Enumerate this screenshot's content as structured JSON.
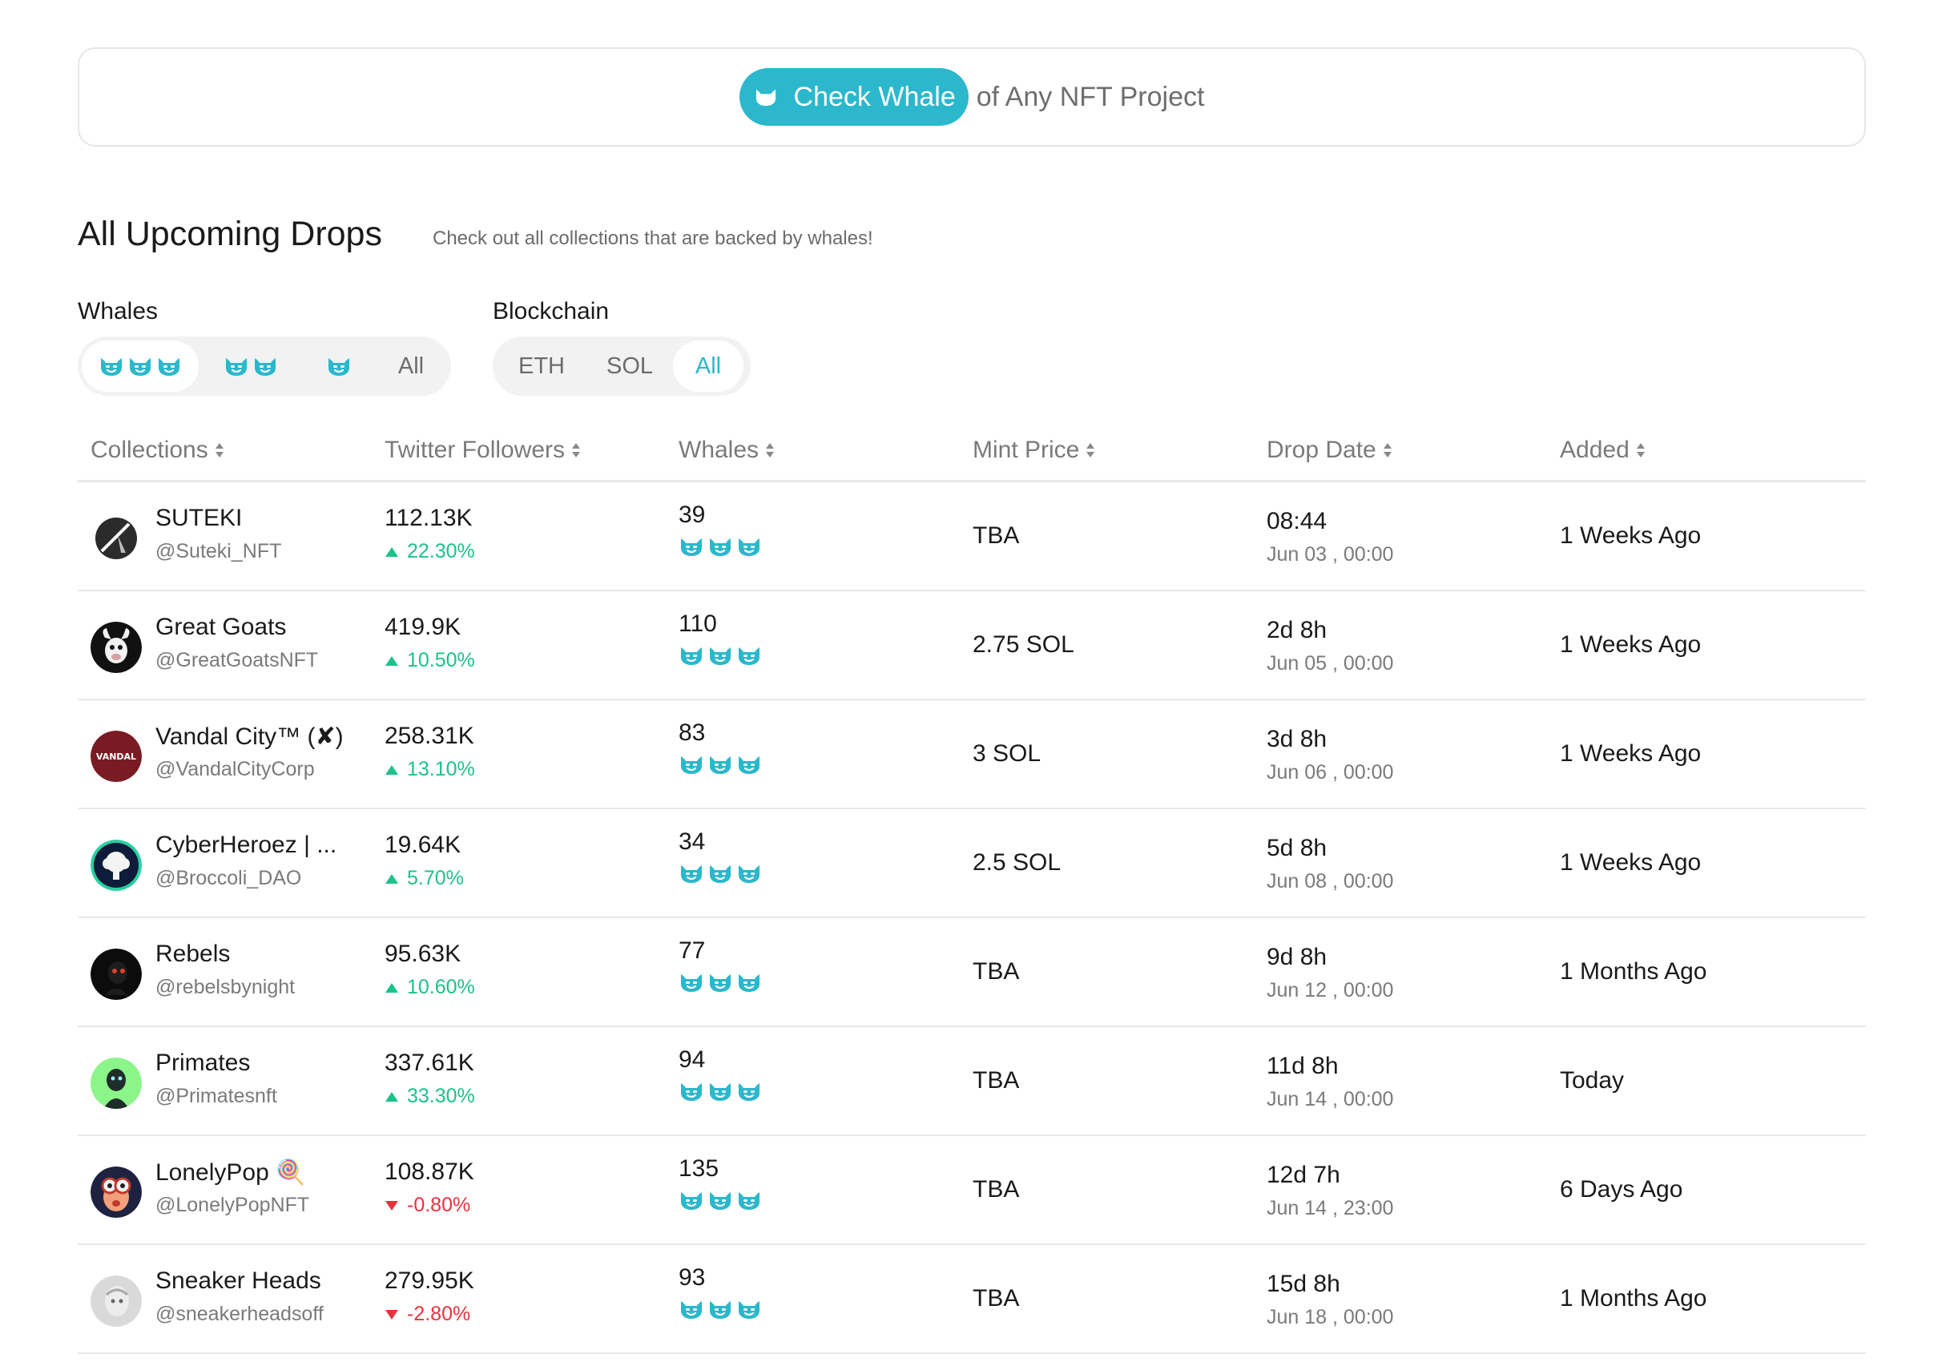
{
  "colors": {
    "accent": "#2bb8cc",
    "up": "#1cc28a",
    "down": "#e8333b"
  },
  "check": {
    "button_label": "Check Whale",
    "suffix": "of Any NFT Project"
  },
  "section": {
    "title": "All Upcoming Drops",
    "subtitle": "Check out all collections that are backed by whales!"
  },
  "filters": {
    "whales": {
      "label": "Whales",
      "options": [
        "3 whales",
        "2 whales",
        "1 whale",
        "All"
      ],
      "all_label": "All",
      "selected": "3 whales"
    },
    "blockchain": {
      "label": "Blockchain",
      "options": [
        "ETH",
        "SOL",
        "All"
      ],
      "selected": "All"
    }
  },
  "table": {
    "headers": {
      "collections": "Collections",
      "followers": "Twitter Followers",
      "whales": "Whales",
      "mint": "Mint Price",
      "drop": "Drop Date",
      "added": "Added"
    },
    "rows": [
      {
        "name": "SUTEKI",
        "handle": "@Suteki_NFT",
        "followers": "112.13K",
        "change": "22.30%",
        "direction": "up",
        "whales": "39",
        "mint": "TBA",
        "drop_rel": "08:44",
        "drop_abs": "Jun 03 , 00:00",
        "added": "1 Weeks Ago",
        "avatar": "suteki"
      },
      {
        "name": "Great Goats",
        "handle": "@GreatGoatsNFT",
        "followers": "419.9K",
        "change": "10.50%",
        "direction": "up",
        "whales": "110",
        "mint": "2.75 SOL",
        "drop_rel": "2d 8h",
        "drop_abs": "Jun 05 , 00:00",
        "added": "1 Weeks Ago",
        "avatar": "goats"
      },
      {
        "name": "Vandal City™ (✘)",
        "handle": "@VandalCityCorp",
        "followers": "258.31K",
        "change": "13.10%",
        "direction": "up",
        "whales": "83",
        "mint": "3 SOL",
        "drop_rel": "3d 8h",
        "drop_abs": "Jun 06 , 00:00",
        "added": "1 Weeks Ago",
        "avatar": "vandal",
        "avatar_text": "VANDAL"
      },
      {
        "name": "CyberHeroez | ...",
        "handle": "@Broccoli_DAO",
        "followers": "19.64K",
        "change": "5.70%",
        "direction": "up",
        "whales": "34",
        "mint": "2.5 SOL",
        "drop_rel": "5d 8h",
        "drop_abs": "Jun 08 , 00:00",
        "added": "1 Weeks Ago",
        "avatar": "cyber"
      },
      {
        "name": "Rebels",
        "handle": "@rebelsbynight",
        "followers": "95.63K",
        "change": "10.60%",
        "direction": "up",
        "whales": "77",
        "mint": "TBA",
        "drop_rel": "9d 8h",
        "drop_abs": "Jun 12 , 00:00",
        "added": "1 Months Ago",
        "avatar": "rebels"
      },
      {
        "name": "Primates",
        "handle": "@Primatesnft",
        "followers": "337.61K",
        "change": "33.30%",
        "direction": "up",
        "whales": "94",
        "mint": "TBA",
        "drop_rel": "11d 8h",
        "drop_abs": "Jun 14 , 00:00",
        "added": "Today",
        "avatar": "primates"
      },
      {
        "name": "LonelyPop 🍭",
        "handle": "@LonelyPopNFT",
        "followers": "108.87K",
        "change": "-0.80%",
        "direction": "down",
        "whales": "135",
        "mint": "TBA",
        "drop_rel": "12d 7h",
        "drop_abs": "Jun 14 , 23:00",
        "added": "6 Days Ago",
        "avatar": "lonely"
      },
      {
        "name": "Sneaker Heads",
        "handle": "@sneakerheadsoff",
        "followers": "279.95K",
        "change": "-2.80%",
        "direction": "down",
        "whales": "93",
        "mint": "TBA",
        "drop_rel": "15d 8h",
        "drop_abs": "Jun 18 , 00:00",
        "added": "1 Months Ago",
        "avatar": "sneaker"
      }
    ]
  }
}
